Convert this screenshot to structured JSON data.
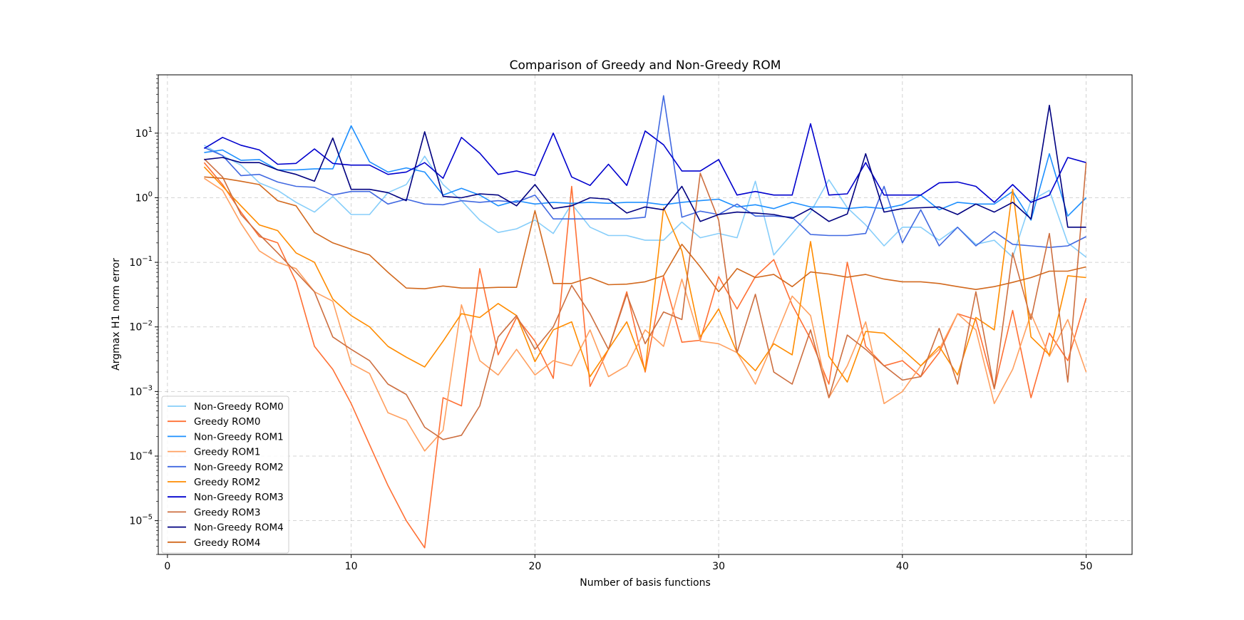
{
  "chart_data": {
    "type": "line",
    "title": "Comparison of Greedy and Non-Greedy ROM",
    "xlabel": "Number of basis functions",
    "ylabel": "Argmax H1 norm error",
    "xlim": [
      -0.5,
      52.5
    ],
    "ylim": [
      3e-06,
      80
    ],
    "yscale": "log",
    "grid": true,
    "legend_position": "lower-left",
    "x_ticks": [
      0,
      10,
      20,
      30,
      40,
      50
    ],
    "y_ticks": [
      {
        "value": 1e-05,
        "base": "10",
        "exp": "−5"
      },
      {
        "value": 0.0001,
        "base": "10",
        "exp": "−4"
      },
      {
        "value": 0.001,
        "base": "10",
        "exp": "−3"
      },
      {
        "value": 0.01,
        "base": "10",
        "exp": "−2"
      },
      {
        "value": 0.1,
        "base": "10",
        "exp": "−1"
      },
      {
        "value": 1,
        "base": "10",
        "exp": "0"
      },
      {
        "value": 10,
        "base": "10",
        "exp": "1"
      }
    ],
    "x": [
      2,
      3,
      4,
      5,
      6,
      7,
      8,
      9,
      10,
      11,
      12,
      13,
      14,
      15,
      16,
      17,
      18,
      19,
      20,
      21,
      22,
      23,
      24,
      25,
      26,
      27,
      28,
      29,
      30,
      31,
      32,
      33,
      34,
      35,
      36,
      37,
      38,
      39,
      40,
      41,
      42,
      43,
      44,
      45,
      46,
      47,
      48,
      49,
      50
    ],
    "series": [
      {
        "name": "Non-Greedy ROM0",
        "color": "#87cefa",
        "values": [
          6.5,
          4.5,
          3.2,
          1.7,
          1.3,
          0.85,
          0.6,
          1.05,
          0.55,
          0.55,
          1.2,
          1.6,
          4.4,
          1.6,
          0.9,
          0.45,
          0.29,
          0.33,
          0.45,
          0.28,
          0.8,
          0.35,
          0.26,
          0.26,
          0.22,
          0.22,
          0.42,
          0.24,
          0.28,
          0.24,
          1.8,
          0.13,
          0.28,
          0.6,
          1.9,
          0.7,
          0.38,
          0.18,
          0.35,
          0.35,
          0.22,
          0.35,
          0.19,
          0.22,
          0.12,
          0.9,
          1.3,
          0.2,
          0.12
        ]
      },
      {
        "name": "Greedy ROM0",
        "color": "#ff7034",
        "values": [
          3.5,
          1.6,
          0.6,
          0.25,
          0.2,
          0.05,
          0.005,
          0.0022,
          0.00065,
          0.00015,
          3.5e-05,
          1e-05,
          3.8e-06,
          0.0008,
          0.0006,
          0.08,
          0.0037,
          0.014,
          0.006,
          0.0016,
          1.5,
          0.0012,
          0.0045,
          0.035,
          0.002,
          0.06,
          0.0058,
          0.0062,
          0.06,
          0.019,
          0.06,
          0.11,
          0.022,
          0.0065,
          0.0013,
          0.1,
          0.005,
          0.0025,
          0.003,
          0.0017,
          0.004,
          0.016,
          0.013,
          0.0011,
          0.018,
          0.0008,
          0.008,
          0.003,
          0.028
        ]
      },
      {
        "name": "Non-Greedy ROM1",
        "color": "#1e90ff",
        "values": [
          5,
          5.5,
          3.8,
          3.9,
          2.7,
          2.7,
          2.8,
          2.8,
          13,
          3.6,
          2.5,
          2.9,
          2.5,
          1.1,
          1.4,
          1.1,
          0.75,
          0.9,
          0.8,
          0.85,
          0.82,
          0.85,
          0.82,
          0.85,
          0.85,
          0.78,
          0.85,
          0.9,
          0.95,
          0.72,
          0.78,
          0.68,
          0.85,
          0.72,
          0.72,
          0.68,
          0.72,
          0.68,
          0.78,
          1.1,
          0.65,
          0.85,
          0.8,
          0.8,
          1.25,
          0.45,
          4.8,
          0.52,
          1
        ]
      },
      {
        "name": "Greedy ROM1",
        "color": "#ffa060",
        "values": [
          2,
          1.3,
          0.4,
          0.15,
          0.1,
          0.08,
          0.035,
          0.025,
          0.0027,
          0.0019,
          0.00047,
          0.00036,
          0.00012,
          0.00025,
          0.022,
          0.003,
          0.0018,
          0.0045,
          0.0018,
          0.003,
          0.0025,
          0.009,
          0.0017,
          0.0025,
          0.009,
          0.005,
          0.055,
          0.006,
          0.0055,
          0.004,
          0.0013,
          0.006,
          0.03,
          0.015,
          0.0008,
          0.0025,
          0.012,
          0.00065,
          0.001,
          0.0025,
          0.0045,
          0.016,
          0.009,
          0.00065,
          0.0022,
          0.016,
          0.0035,
          0.013,
          0.002
        ]
      },
      {
        "name": "Non-Greedy ROM2",
        "color": "#4169e1",
        "values": [
          6,
          4.5,
          2.2,
          2.3,
          1.75,
          1.5,
          1.45,
          1.1,
          1.25,
          1.25,
          0.8,
          0.95,
          0.8,
          0.78,
          0.9,
          0.85,
          0.9,
          0.85,
          1.1,
          0.47,
          0.47,
          0.47,
          0.47,
          0.47,
          0.5,
          38,
          0.5,
          0.62,
          0.55,
          0.8,
          0.52,
          0.52,
          0.5,
          0.27,
          0.26,
          0.26,
          0.28,
          1.5,
          0.2,
          0.65,
          0.18,
          0.35,
          0.18,
          0.3,
          0.19,
          0.18,
          0.17,
          0.18,
          0.25
        ]
      },
      {
        "name": "Greedy ROM2",
        "color": "#ff8c00",
        "values": [
          3,
          1.5,
          0.75,
          0.38,
          0.31,
          0.14,
          0.1,
          0.027,
          0.015,
          0.01,
          0.005,
          0.0034,
          0.0024,
          0.006,
          0.016,
          0.014,
          0.023,
          0.015,
          0.0029,
          0.009,
          0.012,
          0.0017,
          0.0045,
          0.012,
          0.0021,
          0.7,
          0.15,
          0.007,
          0.019,
          0.004,
          0.0021,
          0.0055,
          0.0037,
          0.21,
          0.0035,
          0.0014,
          0.0085,
          0.008,
          0.0045,
          0.0025,
          0.005,
          0.0018,
          0.014,
          0.009,
          1.35,
          0.007,
          0.0037,
          0.062,
          0.058
        ]
      },
      {
        "name": "Non-Greedy ROM3",
        "color": "#0000cd",
        "values": [
          5.8,
          8.6,
          6.5,
          5.5,
          3.3,
          3.4,
          5.7,
          3.4,
          3.2,
          3.2,
          2.3,
          2.5,
          3.5,
          2,
          8.6,
          4.9,
          2.3,
          2.6,
          2.2,
          10,
          2.1,
          1.55,
          3.3,
          1.55,
          10.8,
          6.6,
          2.6,
          2.6,
          3.9,
          1.1,
          1.25,
          1.1,
          1.1,
          14,
          1.1,
          1.15,
          3.5,
          1.1,
          1.1,
          1.1,
          1.7,
          1.75,
          1.5,
          0.85,
          1.6,
          0.85,
          1.1,
          4.2,
          3.5
        ]
      },
      {
        "name": "Greedy ROM3",
        "color": "#cd6f40",
        "values": [
          4,
          2.1,
          0.55,
          0.27,
          0.14,
          0.07,
          0.035,
          0.007,
          0.0045,
          0.003,
          0.0013,
          0.0009,
          0.00028,
          0.00018,
          0.00021,
          0.0006,
          0.007,
          0.015,
          0.0045,
          0.01,
          0.044,
          0.016,
          0.0045,
          0.032,
          0.0055,
          0.017,
          0.013,
          2.4,
          0.45,
          0.004,
          0.032,
          0.002,
          0.0013,
          0.009,
          0.0008,
          0.0075,
          0.0045,
          0.0025,
          0.0015,
          0.0017,
          0.0095,
          0.0013,
          0.035,
          0.0011,
          0.14,
          0.013,
          0.28,
          0.0014,
          3.5
        ]
      },
      {
        "name": "Non-Greedy ROM4",
        "color": "#000080",
        "values": [
          3.9,
          4.2,
          3.5,
          3.5,
          2.7,
          2.3,
          1.8,
          8.4,
          1.35,
          1.35,
          1.2,
          0.9,
          10.5,
          1.05,
          1,
          1.15,
          1.1,
          0.75,
          1.6,
          0.68,
          0.75,
          1,
          0.95,
          0.58,
          0.72,
          0.65,
          1.5,
          0.43,
          0.55,
          0.6,
          0.58,
          0.55,
          0.48,
          0.68,
          0.43,
          0.56,
          4.8,
          0.6,
          0.68,
          0.7,
          0.72,
          0.55,
          0.8,
          0.6,
          0.85,
          0.47,
          27,
          0.35,
          0.35
        ]
      },
      {
        "name": "Greedy ROM4",
        "color": "#d2691e",
        "values": [
          2.1,
          2,
          1.8,
          1.6,
          0.9,
          0.75,
          0.29,
          0.2,
          0.16,
          0.13,
          0.07,
          0.04,
          0.039,
          0.043,
          0.04,
          0.04,
          0.041,
          0.041,
          0.63,
          0.047,
          0.047,
          0.058,
          0.045,
          0.046,
          0.05,
          0.062,
          0.19,
          0.085,
          0.035,
          0.08,
          0.058,
          0.065,
          0.042,
          0.071,
          0.066,
          0.059,
          0.065,
          0.055,
          0.05,
          0.05,
          0.047,
          0.042,
          0.038,
          0.042,
          0.049,
          0.058,
          0.073,
          0.073,
          0.085
        ]
      }
    ]
  }
}
